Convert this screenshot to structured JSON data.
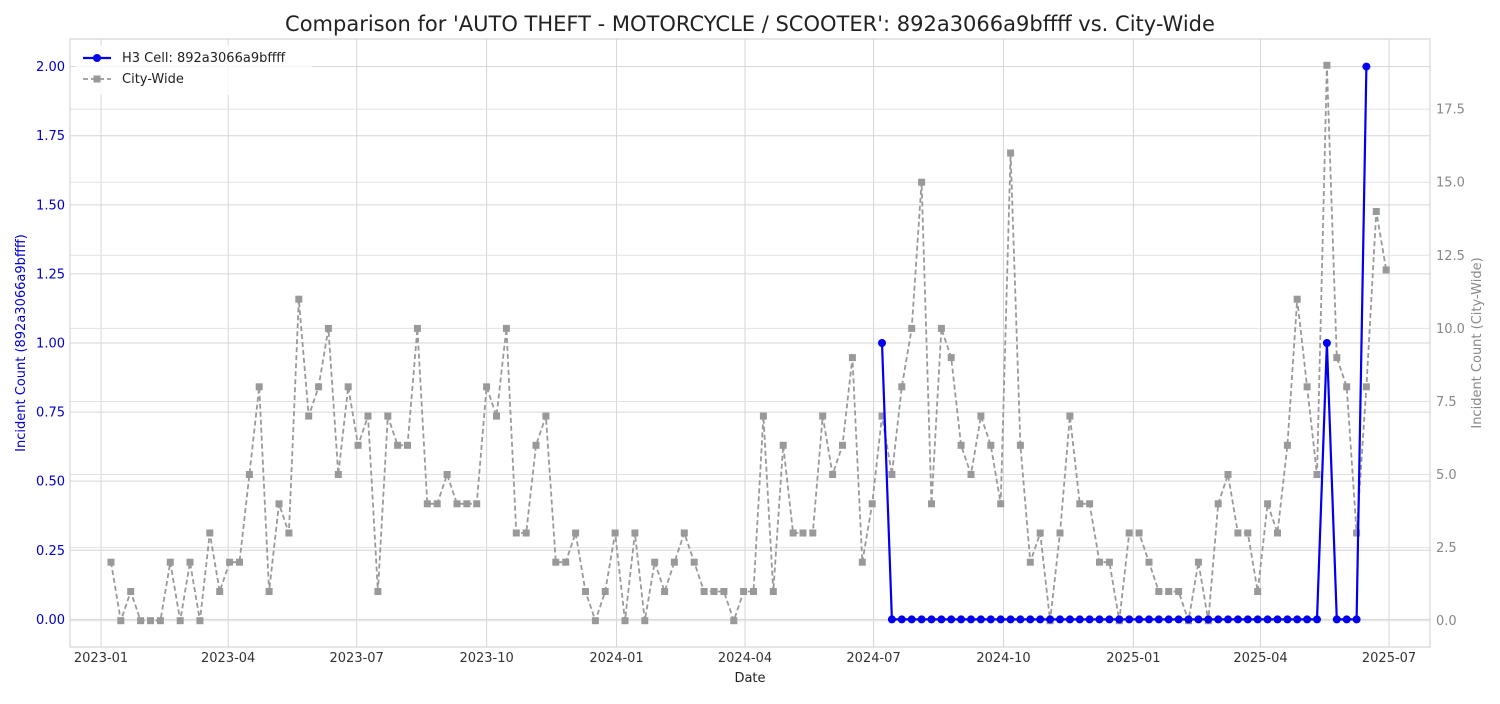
{
  "chart_data": {
    "type": "line",
    "title": "Comparison for 'AUTO THEFT - MOTORCYCLE / SCOOTER': 892a3066a9bffff vs. City-Wide",
    "xlabel": "Date",
    "ylabel_left": "Incident Count (892a3066a9bffff)",
    "ylabel_right": "Incident Count (City-Wide)",
    "x_ticks": [
      "2023-01",
      "2023-04",
      "2023-07",
      "2023-10",
      "2024-01",
      "2024-04",
      "2024-07",
      "2024-10",
      "2025-01",
      "2025-04",
      "2025-07"
    ],
    "x_range": [
      "2022-12-10",
      "2025-07-30"
    ],
    "ylim_left": [
      -0.1,
      2.1
    ],
    "ylim_right": [
      -0.9,
      19.9
    ],
    "y_ticks_left": [
      "0.00",
      "0.25",
      "0.50",
      "0.75",
      "1.00",
      "1.25",
      "1.50",
      "1.75",
      "2.00"
    ],
    "y_ticks_right": [
      "0.0",
      "2.5",
      "5.0",
      "7.5",
      "10.0",
      "12.5",
      "15.0",
      "17.5"
    ],
    "grid": true,
    "legend": "top-left",
    "colors": {
      "cell": "#0000ee",
      "city": "#999999",
      "left_axis": "#0000cc",
      "right_axis": "#888888"
    },
    "series": [
      {
        "name": "H3 Cell: 892a3066a9bffff",
        "axis": "left",
        "start": "2024-07-07",
        "interval_days": 7,
        "values": [
          1,
          0,
          0,
          0,
          0,
          0,
          0,
          0,
          0,
          0,
          0,
          0,
          0,
          0,
          0,
          0,
          0,
          0,
          0,
          0,
          0,
          0,
          0,
          0,
          0,
          0,
          0,
          0,
          0,
          0,
          0,
          0,
          0,
          0,
          0,
          0,
          0,
          0,
          0,
          0,
          0,
          0,
          0,
          0,
          0,
          1,
          0,
          0,
          0,
          2
        ]
      },
      {
        "name": "City-Wide",
        "axis": "right",
        "start": "2023-01-08",
        "interval_days": 7,
        "values": [
          2,
          0,
          1,
          0,
          0,
          0,
          2,
          0,
          2,
          0,
          3,
          1,
          2,
          2,
          5,
          8,
          1,
          4,
          3,
          11,
          7,
          8,
          10,
          5,
          8,
          6,
          7,
          1,
          7,
          6,
          6,
          10,
          4,
          4,
          5,
          4,
          4,
          4,
          8,
          7,
          10,
          3,
          3,
          6,
          7,
          2,
          2,
          3,
          1,
          0,
          1,
          3,
          0,
          3,
          0,
          2,
          1,
          2,
          3,
          2,
          1,
          1,
          1,
          0,
          1,
          1,
          7,
          1,
          6,
          3,
          3,
          3,
          7,
          5,
          6,
          9,
          2,
          4,
          7,
          5,
          8,
          10,
          15,
          4,
          10,
          9,
          6,
          5,
          7,
          6,
          4,
          16,
          6,
          2,
          3,
          0,
          3,
          7,
          4,
          4,
          2,
          2,
          0,
          3,
          3,
          2,
          1,
          1,
          1,
          0,
          2,
          0,
          4,
          5,
          3,
          3,
          1,
          4,
          3,
          6,
          11,
          8,
          5,
          19,
          9,
          8,
          3,
          8,
          14,
          12
        ]
      }
    ]
  }
}
